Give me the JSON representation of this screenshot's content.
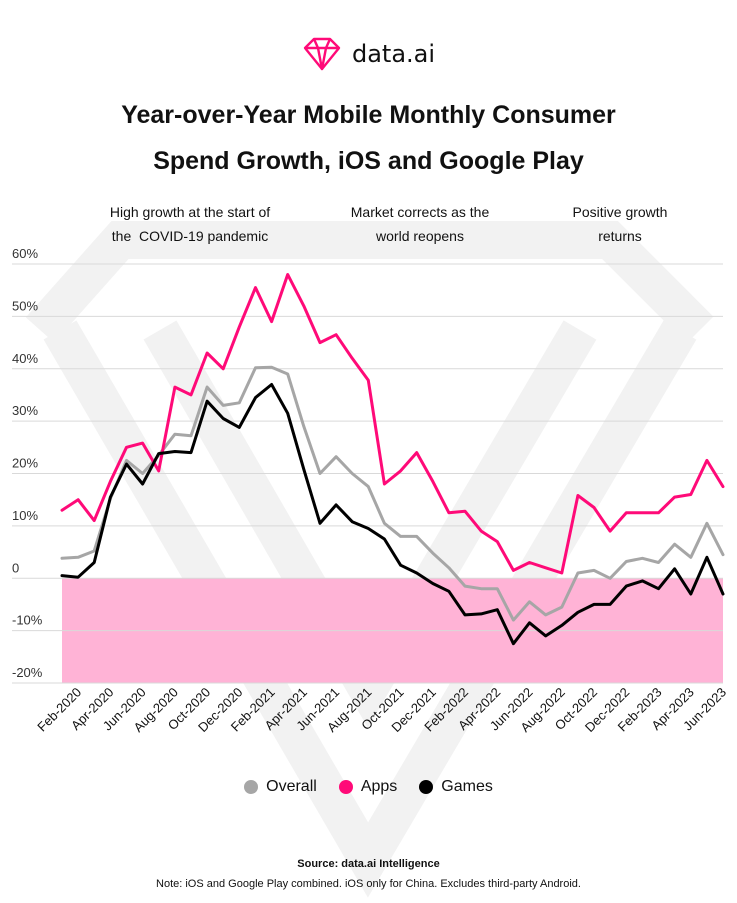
{
  "brand": {
    "name": "data.ai"
  },
  "title_lines": [
    "Year-over-Year Mobile Monthly Consumer",
    "Spend Growth, iOS and Google Play"
  ],
  "annotations": [
    {
      "lines": [
        "High growth at the start of",
        "the  COVID-19 pandemic"
      ]
    },
    {
      "lines": [
        "Market corrects as the",
        "world reopens"
      ]
    },
    {
      "lines": [
        "Positive growth",
        "returns"
      ]
    }
  ],
  "legend": [
    {
      "label": "Overall",
      "color": "#a6a6a6"
    },
    {
      "label": "Apps",
      "color": "#ff0a78"
    },
    {
      "label": "Games",
      "color": "#000000"
    }
  ],
  "footer": {
    "source": "Source: data.ai Intelligence",
    "note": "Note: iOS and Google Play combined. iOS only for China. Excludes third-party Android."
  },
  "chart_data": {
    "type": "line",
    "title": "Year-over-Year Mobile Monthly Consumer Spend Growth, iOS and Google Play",
    "xlabel": "",
    "ylabel": "",
    "ylim": [
      -20,
      60
    ],
    "y_ticks": [
      "60%",
      "50%",
      "40%",
      "30%",
      "20%",
      "10%",
      "0",
      "-10%",
      "-20%"
    ],
    "negative_region_color": "#ffb3d6",
    "grid": true,
    "legend_position": "bottom",
    "x_tick_labels": [
      "Feb-2020",
      "Apr-2020",
      "Jun-2020",
      "Aug-2020",
      "Oct-2020",
      "Dec-2020",
      "Feb-2021",
      "Apr-2021",
      "Jun-2021",
      "Aug-2021",
      "Oct-2021",
      "Dec-2021",
      "Feb-2022",
      "Apr-2022",
      "Jun-2022",
      "Aug-2022",
      "Oct-2022",
      "Dec-2022",
      "Feb-2023",
      "Apr-2023",
      "Jun-2023"
    ],
    "x": [
      "Jan-2020",
      "Feb-2020",
      "Mar-2020",
      "Apr-2020",
      "May-2020",
      "Jun-2020",
      "Jul-2020",
      "Aug-2020",
      "Sep-2020",
      "Oct-2020",
      "Nov-2020",
      "Dec-2020",
      "Jan-2021",
      "Feb-2021",
      "Mar-2021",
      "Apr-2021",
      "May-2021",
      "Jun-2021",
      "Jul-2021",
      "Aug-2021",
      "Sep-2021",
      "Oct-2021",
      "Nov-2021",
      "Dec-2021",
      "Jan-2022",
      "Feb-2022",
      "Mar-2022",
      "Apr-2022",
      "May-2022",
      "Jun-2022",
      "Jul-2022",
      "Aug-2022",
      "Sep-2022",
      "Oct-2022",
      "Nov-2022",
      "Dec-2022",
      "Jan-2023",
      "Feb-2023",
      "Mar-2023",
      "Apr-2023",
      "May-2023",
      "Jun-2023"
    ],
    "series": [
      {
        "name": "Overall",
        "color": "#a6a6a6",
        "values": [
          3.8,
          4.0,
          5.2,
          15.2,
          22.5,
          20.0,
          23.5,
          27.5,
          27.2,
          36.5,
          33.0,
          33.5,
          40.2,
          40.3,
          39.0,
          29.0,
          20.0,
          23.2,
          20.0,
          17.5,
          10.5,
          8.0,
          8.0,
          4.8,
          2.0,
          -1.5,
          -2.0,
          -2.0,
          -8.0,
          -4.5,
          -7.0,
          -5.5,
          1.0,
          1.5,
          0.0,
          3.2,
          3.8,
          3.0,
          6.5,
          4.0,
          10.5,
          4.5
        ]
      },
      {
        "name": "Apps",
        "color": "#ff0a78",
        "values": [
          13.0,
          15.0,
          11.0,
          18.5,
          25.0,
          25.8,
          20.5,
          36.5,
          35.0,
          43.0,
          40.0,
          48.0,
          55.5,
          49.0,
          58.0,
          52.0,
          45.0,
          46.5,
          42.0,
          37.8,
          18.0,
          20.5,
          24.0,
          18.5,
          12.5,
          12.8,
          9.0,
          7.0,
          1.5,
          3.0,
          2.0,
          1.0,
          15.8,
          13.5,
          9.0,
          12.5,
          12.5,
          12.5,
          15.5,
          16.0,
          22.5,
          17.5
        ]
      },
      {
        "name": "Games",
        "color": "#000000",
        "values": [
          0.5,
          0.2,
          3.0,
          15.5,
          21.8,
          18.0,
          23.8,
          24.2,
          24.0,
          33.8,
          30.5,
          28.8,
          34.5,
          37.0,
          31.5,
          20.8,
          10.5,
          14.0,
          10.8,
          9.5,
          7.5,
          2.5,
          1.0,
          -1.0,
          -2.5,
          -7.0,
          -6.8,
          -6.0,
          -12.5,
          -8.5,
          -11.0,
          -9.0,
          -6.5,
          -5.0,
          -5.0,
          -1.5,
          -0.5,
          -2.0,
          1.8,
          -3.0,
          4.0,
          -3.0
        ]
      }
    ]
  }
}
